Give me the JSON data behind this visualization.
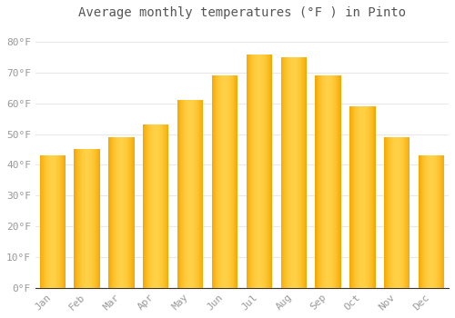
{
  "months": [
    "Jan",
    "Feb",
    "Mar",
    "Apr",
    "May",
    "Jun",
    "Jul",
    "Aug",
    "Sep",
    "Oct",
    "Nov",
    "Dec"
  ],
  "values": [
    43,
    45,
    49,
    53,
    61,
    69,
    76,
    75,
    69,
    59,
    49,
    43
  ],
  "bar_color_left": "#F5A800",
  "bar_color_mid": "#FFD045",
  "bar_color_right": "#F5A800",
  "title": "Average monthly temperatures (°F ) in Pinto",
  "ylim": [
    0,
    85
  ],
  "yticks": [
    0,
    10,
    20,
    30,
    40,
    50,
    60,
    70,
    80
  ],
  "ytick_labels": [
    "0°F",
    "10°F",
    "20°F",
    "30°F",
    "40°F",
    "50°F",
    "60°F",
    "70°F",
    "80°F"
  ],
  "bg_color": "#ffffff",
  "grid_color": "#e8e8e8",
  "title_fontsize": 10,
  "tick_fontsize": 8,
  "tick_color": "#999999",
  "bar_width": 0.75
}
